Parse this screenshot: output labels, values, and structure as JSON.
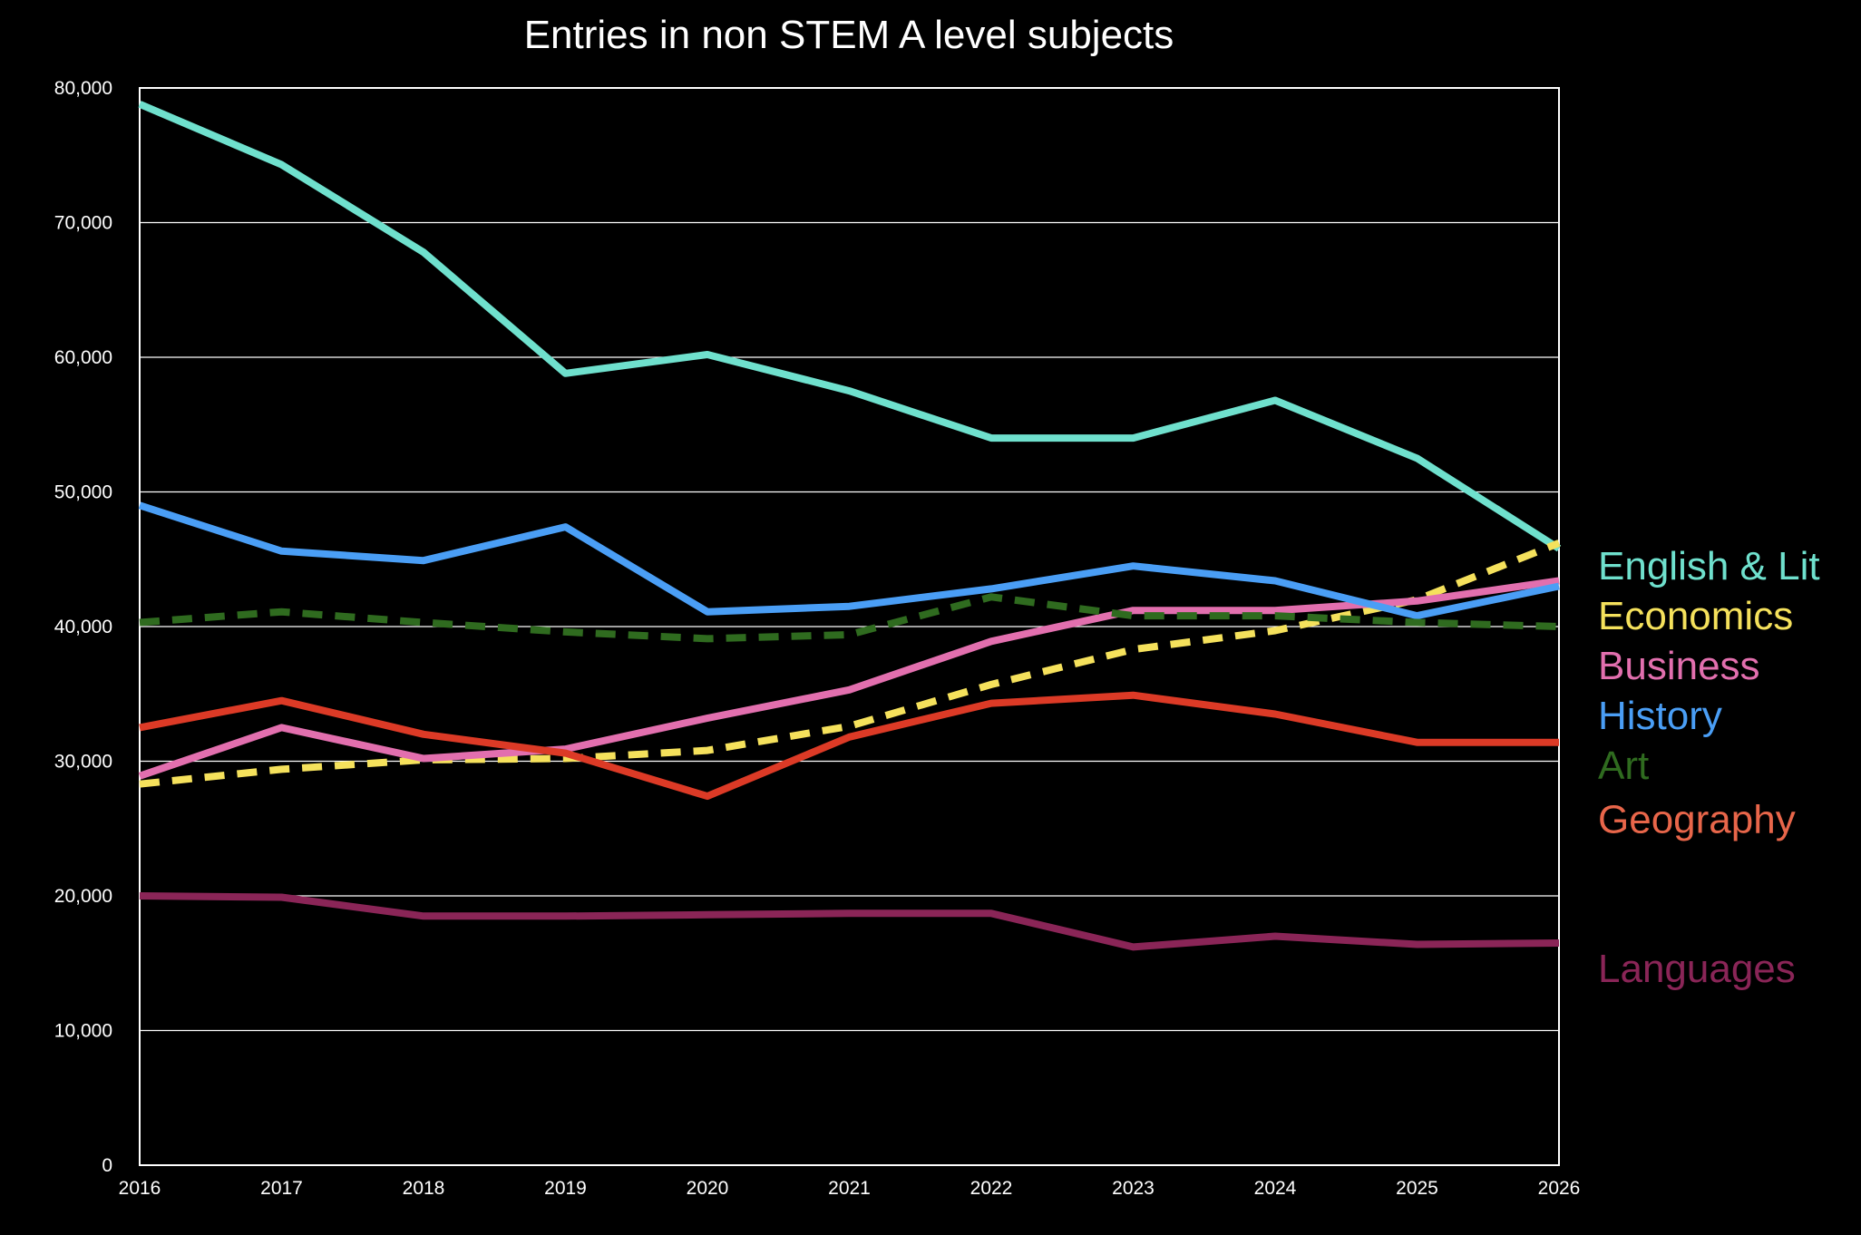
{
  "chart_data": {
    "type": "line",
    "title": "Entries in non STEM A level subjects",
    "xlabel": "",
    "ylabel": "",
    "x": [
      2016,
      2017,
      2018,
      2019,
      2020,
      2021,
      2022,
      2023,
      2024,
      2025,
      2026
    ],
    "x_tick_labels": [
      "2016",
      "2017",
      "2018",
      "2019",
      "2020",
      "2021",
      "2022",
      "2023",
      "2024",
      "2025",
      "2026"
    ],
    "ylim": [
      0,
      80000
    ],
    "y_ticks": [
      0,
      10000,
      20000,
      30000,
      40000,
      50000,
      60000,
      70000,
      80000
    ],
    "y_tick_labels": [
      "0",
      "10,000",
      "20,000",
      "30,000",
      "40,000",
      "50,000",
      "60,000",
      "70,000",
      "80,000"
    ],
    "grid": "horizontal",
    "legend_placement": "right",
    "series": [
      {
        "name": "English & Lit",
        "color": "#6fe0cd",
        "dashed": false,
        "legend_y": 44500,
        "values": [
          78800,
          74300,
          67800,
          58800,
          60200,
          57500,
          54000,
          54000,
          56800,
          52500,
          45800
        ]
      },
      {
        "name": "Economics",
        "color": "#f5e15c",
        "dashed": true,
        "legend_y": 40800,
        "values": [
          28300,
          29400,
          30100,
          30200,
          30800,
          32600,
          35700,
          38300,
          39700,
          42000,
          46200
        ]
      },
      {
        "name": "Business",
        "color": "#e26fae",
        "dashed": false,
        "legend_y": 37100,
        "values": [
          28900,
          32500,
          30200,
          30900,
          33200,
          35300,
          38900,
          41200,
          41200,
          41900,
          43400
        ]
      },
      {
        "name": "History",
        "color": "#4a9ef5",
        "dashed": false,
        "legend_y": 33400,
        "values": [
          49000,
          45600,
          44900,
          47400,
          41100,
          41500,
          42800,
          44500,
          43400,
          40800,
          43000
        ]
      },
      {
        "name": "Art",
        "color": "#2f6b1f",
        "dashed": true,
        "legend_y": 29700,
        "values": [
          40300,
          41100,
          40300,
          39600,
          39100,
          39400,
          42200,
          40800,
          40800,
          40300,
          40000
        ]
      },
      {
        "name": "Geography",
        "color": "#e8664a",
        "dashed": false,
        "legend_y": 25700,
        "line_color": "#dc3a26",
        "values": [
          32500,
          34500,
          32000,
          30600,
          27400,
          31800,
          34300,
          34900,
          33500,
          31400,
          31400
        ]
      },
      {
        "name": "Languages",
        "color": "#8a2557",
        "dashed": false,
        "legend_y": 14600,
        "values": [
          20000,
          19900,
          18500,
          18500,
          18600,
          18700,
          18700,
          16200,
          17000,
          16400,
          16500
        ]
      }
    ]
  }
}
